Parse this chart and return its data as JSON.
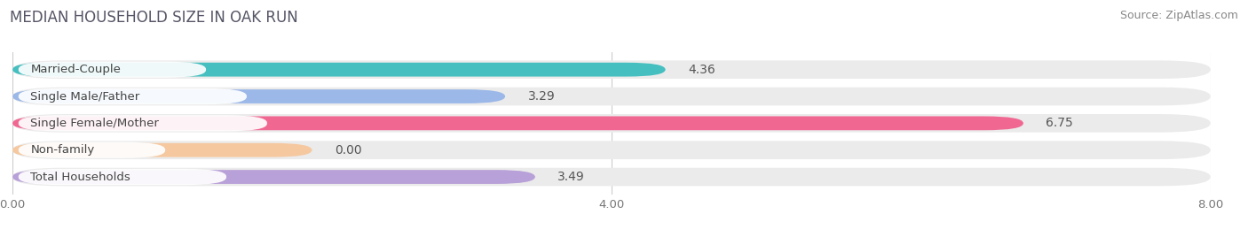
{
  "title": "MEDIAN HOUSEHOLD SIZE IN OAK RUN",
  "source": "Source: ZipAtlas.com",
  "categories": [
    "Married-Couple",
    "Single Male/Father",
    "Single Female/Mother",
    "Non-family",
    "Total Households"
  ],
  "values": [
    4.36,
    3.29,
    6.75,
    0.0,
    3.49
  ],
  "bar_colors": [
    "#45bfbf",
    "#9bb8e8",
    "#f06892",
    "#f5c8a0",
    "#b8a0d8"
  ],
  "xlim": [
    0,
    8.0
  ],
  "xticks": [
    0.0,
    4.0,
    8.0
  ],
  "xtick_labels": [
    "0.00",
    "4.00",
    "8.00"
  ],
  "title_fontsize": 12,
  "source_fontsize": 9,
  "label_fontsize": 9.5,
  "value_fontsize": 10,
  "background_color": "#ffffff",
  "bar_bg_color": "#ebebeb",
  "non_family_display_value": 2.0
}
